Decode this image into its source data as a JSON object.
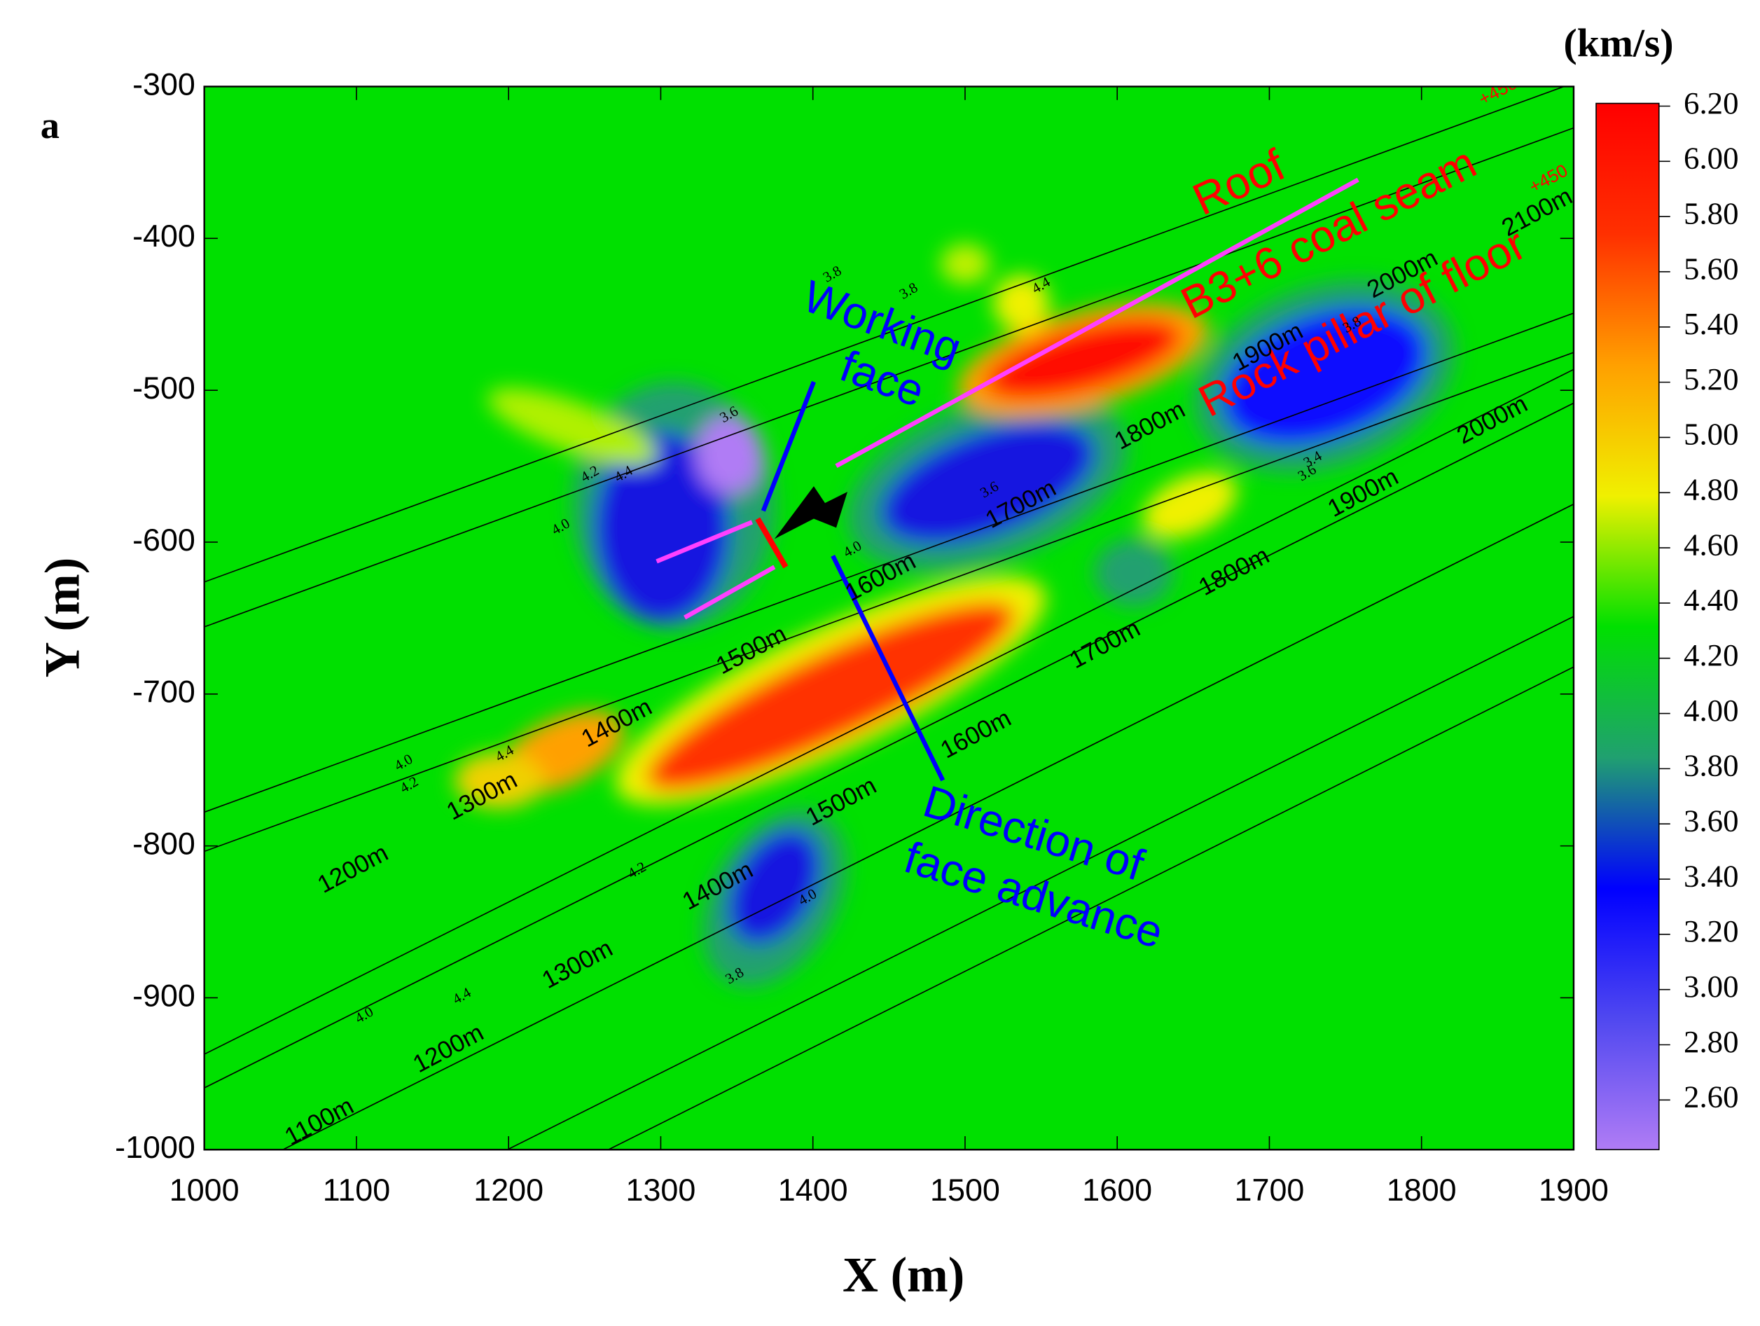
{
  "chart_data": {
    "type": "contour",
    "panel_label": "a",
    "xlabel": "X (m)",
    "ylabel": "Y (m)",
    "colorbar_label": "(km/s)",
    "xlim": [
      1000,
      1900
    ],
    "ylim": [
      -1000,
      -300
    ],
    "xticks": [
      1000,
      1100,
      1200,
      1300,
      1400,
      1500,
      1600,
      1700,
      1800,
      1900
    ],
    "yticks": [
      -1000,
      -900,
      -800,
      -700,
      -600,
      -500,
      -400,
      -300
    ],
    "clim": [
      2.42,
      6.21
    ],
    "cticks": [
      {
        "value": 2.6,
        "label": "2.60"
      },
      {
        "value": 2.8,
        "label": "2.80"
      },
      {
        "value": 3.0,
        "label": "3.00"
      },
      {
        "value": 3.2,
        "label": "3.20"
      },
      {
        "value": 3.4,
        "label": "3.40"
      },
      {
        "value": 3.6,
        "label": "3.60"
      },
      {
        "value": 3.8,
        "label": "3.80"
      },
      {
        "value": 4.0,
        "label": "4.00"
      },
      {
        "value": 4.2,
        "label": "4.20"
      },
      {
        "value": 4.4,
        "label": "4.40"
      },
      {
        "value": 4.6,
        "label": "4.60"
      },
      {
        "value": 4.8,
        "label": "4.80"
      },
      {
        "value": 5.0,
        "label": "5.00"
      },
      {
        "value": 5.2,
        "label": "5.20"
      },
      {
        "value": 5.4,
        "label": "5.40"
      },
      {
        "value": 5.6,
        "label": "5.60"
      },
      {
        "value": 5.8,
        "label": "5.80"
      },
      {
        "value": 6.0,
        "label": "6.00"
      },
      {
        "value": 6.2,
        "label": "6.20"
      }
    ],
    "colorscale": [
      "#b07cf5",
      "#5048f0",
      "#0000ff",
      "#20a070",
      "#00e000",
      "#f0f000",
      "#ffa000",
      "#ff3000",
      "#ff0000"
    ],
    "background_color": "#00e000",
    "annotations": [
      {
        "lines": [
          "Roof"
        ],
        "color": "#ff0000"
      },
      {
        "lines": [
          "B3+6 coal seam"
        ],
        "color": "#ff0000"
      },
      {
        "lines": [
          "Rock pillar of floor"
        ],
        "color": "#ff0000"
      },
      {
        "lines": [
          "Working",
          "face"
        ],
        "color": "#0000ff"
      },
      {
        "lines": [
          "Direction of",
          "face advance"
        ],
        "color": "#0000ff"
      }
    ],
    "distance_labels": [
      "1100m",
      "1200m",
      "1300m",
      "1400m",
      "1500m",
      "1600m",
      "1700m",
      "1800m",
      "1900m",
      "2000m",
      "1200m",
      "1300m",
      "1400m",
      "1500m",
      "1600m",
      "1700m",
      "1800m",
      "1900m",
      "2000m",
      "2100m",
      "+450",
      "+450"
    ],
    "contour_labels": [
      "3.8",
      "3.8",
      "4.4",
      "4.2",
      "4.4",
      "4.0",
      "3.6",
      "3.4",
      "3.6",
      "4.0",
      "4.2",
      "4.4",
      "4.0",
      "3.8",
      "3.6",
      "4.2",
      "4.0",
      "4.4",
      "4.0",
      "3.8"
    ]
  }
}
